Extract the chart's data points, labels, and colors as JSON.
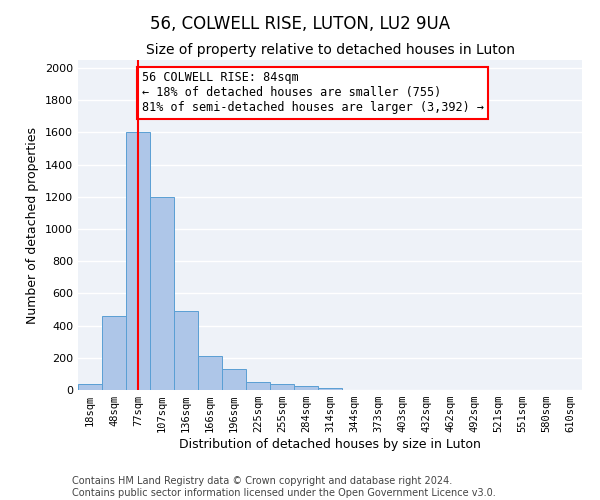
{
  "title": "56, COLWELL RISE, LUTON, LU2 9UA",
  "subtitle": "Size of property relative to detached houses in Luton",
  "xlabel": "Distribution of detached houses by size in Luton",
  "ylabel": "Number of detached properties",
  "footer_line1": "Contains HM Land Registry data © Crown copyright and database right 2024.",
  "footer_line2": "Contains public sector information licensed under the Open Government Licence v3.0.",
  "bin_labels": [
    "18sqm",
    "48sqm",
    "77sqm",
    "107sqm",
    "136sqm",
    "166sqm",
    "196sqm",
    "225sqm",
    "255sqm",
    "284sqm",
    "314sqm",
    "344sqm",
    "373sqm",
    "403sqm",
    "432sqm",
    "462sqm",
    "492sqm",
    "521sqm",
    "551sqm",
    "580sqm",
    "610sqm"
  ],
  "bar_values": [
    35,
    460,
    1600,
    1200,
    490,
    210,
    130,
    50,
    40,
    25,
    15,
    0,
    0,
    0,
    0,
    0,
    0,
    0,
    0,
    0,
    0
  ],
  "bar_color": "#aec6e8",
  "bar_edgecolor": "#5a9fd4",
  "property_line_x": 2.0,
  "annotation_text": "56 COLWELL RISE: 84sqm\n← 18% of detached houses are smaller (755)\n81% of semi-detached houses are larger (3,392) →",
  "annotation_box_color": "white",
  "annotation_box_edgecolor": "red",
  "line_color": "red",
  "ylim_max": 2050,
  "background_color": "#eef2f8",
  "grid_color": "white",
  "title_fontsize": 12,
  "subtitle_fontsize": 10,
  "axis_label_fontsize": 9,
  "tick_fontsize": 7.5,
  "annotation_fontsize": 8.5,
  "footer_fontsize": 7
}
